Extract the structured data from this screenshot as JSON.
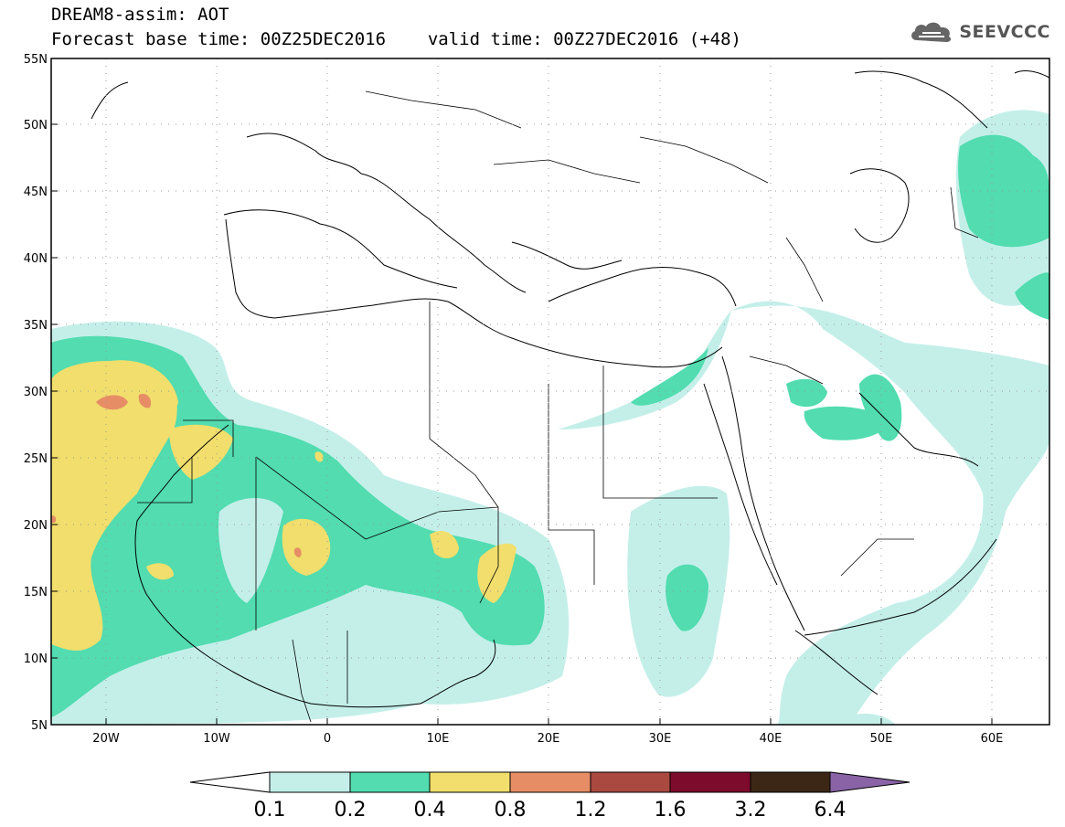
{
  "header": {
    "title": "DREAM8-assim: AOT",
    "base_label": "Forecast base time: 00Z25DEC2016",
    "valid_label": "valid time: 00Z27DEC2016 (+48)"
  },
  "logo": {
    "text": "SEEVCCC",
    "icon": "cloud-icon"
  },
  "map": {
    "lat_labels": [
      "55N",
      "50N",
      "45N",
      "40N",
      "35N",
      "30N",
      "25N",
      "20N",
      "15N",
      "10N",
      "5N"
    ],
    "lon_labels": [
      "20W",
      "10W",
      "0",
      "10E",
      "20E",
      "30E",
      "40E",
      "50E",
      "60E"
    ]
  },
  "colorbar": {
    "colors": [
      "#c4efe9",
      "#52dcb0",
      "#f1de6c",
      "#e68d66",
      "#a9493f",
      "#7d0b2b",
      "#3c2716"
    ],
    "arrow_left_color": "#ffffff",
    "arrow_right_color": "#8a63a7",
    "labels": [
      "0.1",
      "0.2",
      "0.4",
      "0.8",
      "1.2",
      "1.6",
      "3.2",
      "6.4"
    ]
  }
}
